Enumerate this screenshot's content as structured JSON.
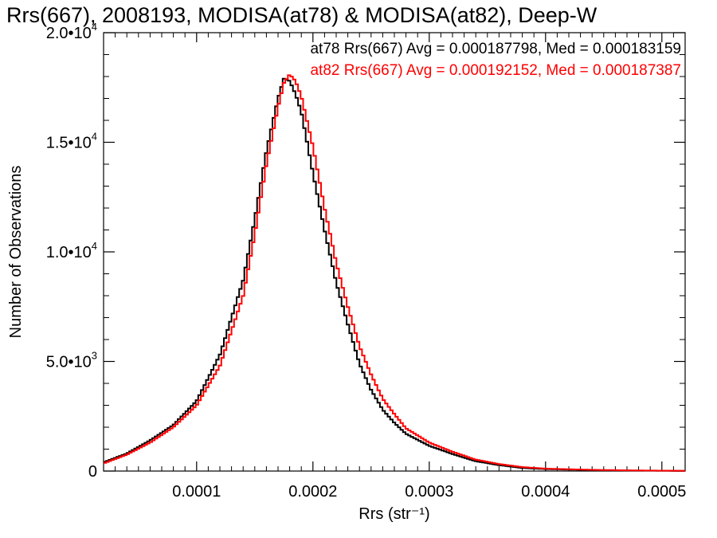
{
  "chart_data": {
    "type": "line",
    "title": "Rrs(667), 2008193, MODISA(at78) & MODISA(at82), Deep-W",
    "xlabel": "Rrs (str⁻¹)",
    "ylabel": "Number of Observations",
    "xlim": [
      2e-05,
      0.00052
    ],
    "ylim": [
      0,
      20000
    ],
    "x_ticks": [
      {
        "value": 0.0001,
        "label": "0.0001"
      },
      {
        "value": 0.0002,
        "label": "0.0002"
      },
      {
        "value": 0.0003,
        "label": "0.0003"
      },
      {
        "value": 0.0004,
        "label": "0.0004"
      },
      {
        "value": 0.0005,
        "label": "0.0005"
      }
    ],
    "y_ticks": [
      {
        "value": 0,
        "mantissa": "0",
        "exponent": ""
      },
      {
        "value": 5000,
        "mantissa": "5.0•10",
        "exponent": "3"
      },
      {
        "value": 10000,
        "mantissa": "1.0•10",
        "exponent": "4"
      },
      {
        "value": 15000,
        "mantissa": "1.5•10",
        "exponent": "4"
      },
      {
        "value": 20000,
        "mantissa": "2.0•10",
        "exponent": "4"
      }
    ],
    "grid": false,
    "legend_position": "top-right",
    "series": [
      {
        "name": "at78",
        "color": "#000000",
        "legend": "at78 Rrs(667) Avg = 0.000187798, Med = 0.000183159",
        "x": [
          2e-05,
          4e-05,
          6e-05,
          8e-05,
          0.0001,
          0.00012,
          0.00014,
          0.00015,
          0.00016,
          0.00017,
          0.000175,
          0.00018,
          0.000185,
          0.00019,
          0.0002,
          0.00021,
          0.00022,
          0.00023,
          0.00024,
          0.00025,
          0.00026,
          0.00027,
          0.00028,
          0.0003,
          0.00032,
          0.00034,
          0.00036,
          0.00038,
          0.0004,
          0.00044,
          0.00048,
          0.00052
        ],
        "y": [
          400,
          800,
          1400,
          2100,
          3200,
          5300,
          8700,
          11500,
          14600,
          17000,
          17900,
          17800,
          17200,
          16400,
          13600,
          11000,
          8600,
          6700,
          4900,
          3700,
          2800,
          2200,
          1700,
          1150,
          780,
          450,
          270,
          140,
          90,
          45,
          20,
          10
        ]
      },
      {
        "name": "at82",
        "color": "#ff0000",
        "legend": "at82 Rrs(667) Avg = 0.000192152, Med = 0.000187387",
        "x": [
          2e-05,
          4e-05,
          6e-05,
          8e-05,
          0.0001,
          0.00012,
          0.00014,
          0.00015,
          0.00016,
          0.00017,
          0.000175,
          0.00018,
          0.000185,
          0.00019,
          0.0002,
          0.00021,
          0.00022,
          0.00023,
          0.00024,
          0.00025,
          0.00026,
          0.00027,
          0.00028,
          0.0003,
          0.00032,
          0.00034,
          0.00036,
          0.00038,
          0.0004,
          0.00044,
          0.00048,
          0.00052
        ],
        "y": [
          350,
          750,
          1300,
          2000,
          3000,
          4800,
          8000,
          10800,
          14000,
          16600,
          17700,
          18100,
          17800,
          17100,
          14800,
          12000,
          9500,
          7500,
          5700,
          4400,
          3300,
          2600,
          1950,
          1300,
          880,
          520,
          320,
          180,
          110,
          55,
          25,
          12
        ]
      }
    ]
  }
}
